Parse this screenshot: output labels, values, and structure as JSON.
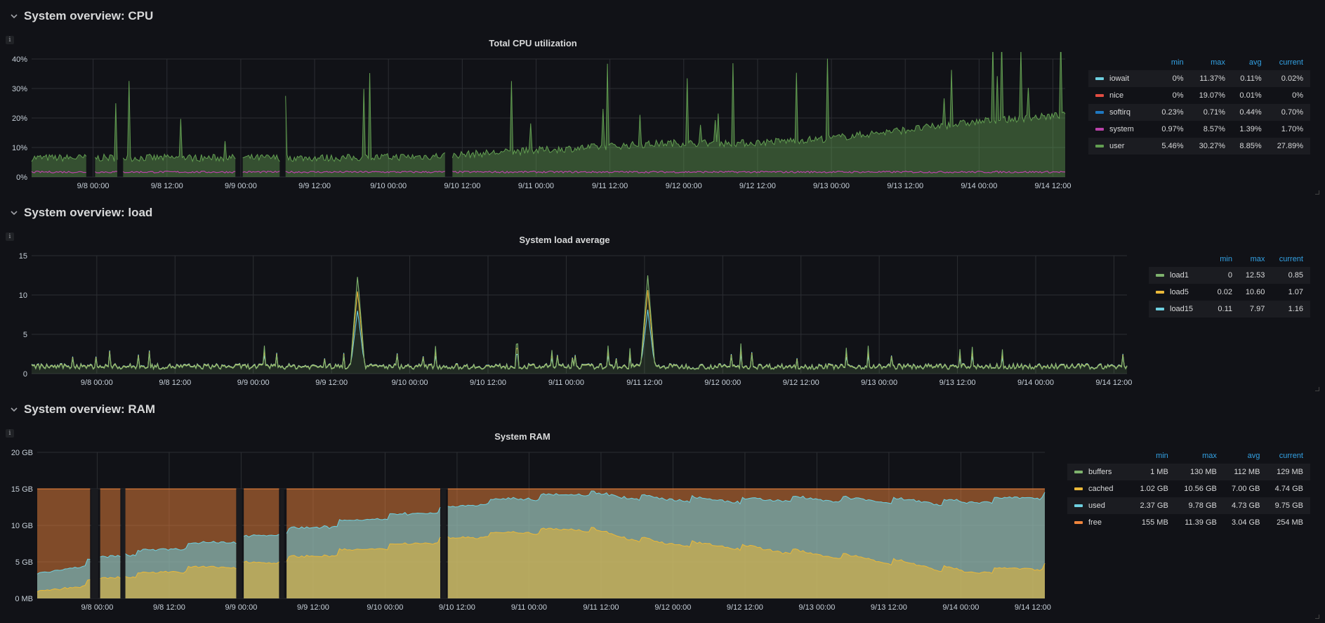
{
  "rows": [
    {
      "title": "System overview: CPU"
    },
    {
      "title": "System overview: load"
    },
    {
      "title": "System overview: RAM"
    }
  ],
  "info_glyph": "i",
  "chart_data": [
    {
      "type": "area",
      "title": "Total CPU utilization",
      "x_ticks": [
        "9/8 00:00",
        "9/8 12:00",
        "9/9 00:00",
        "9/9 12:00",
        "9/10 00:00",
        "9/10 12:00",
        "9/11 00:00",
        "9/11 12:00",
        "9/12 00:00",
        "9/12 12:00",
        "9/13 00:00",
        "9/13 12:00",
        "9/14 00:00",
        "9/14 12:00"
      ],
      "y_ticks": [
        "0%",
        "10%",
        "20%",
        "30%",
        "40%"
      ],
      "ylim": [
        0,
        40
      ],
      "grid": true,
      "legend_position": "right",
      "legend_columns": [
        "min",
        "max",
        "avg",
        "current"
      ],
      "gaps": [
        [
          "9/7 23:00",
          "9/8 00:10"
        ],
        [
          "9/8 04:00",
          "9/8 04:40"
        ],
        [
          "9/8 23:15",
          "9/9 00:10"
        ],
        [
          "9/9 06:30",
          "9/9 07:10"
        ],
        [
          "9/10 09:20",
          "9/10 10:10"
        ]
      ],
      "series": [
        {
          "name": "iowait",
          "color": "#6ed0e0",
          "min": "0%",
          "max": "11.37%",
          "avg": "0.11%",
          "current": "0.02%",
          "typical": 0.1
        },
        {
          "name": "nice",
          "color": "#e24d42",
          "min": "0%",
          "max": "19.07%",
          "avg": "0.01%",
          "current": "0%",
          "typical": 0
        },
        {
          "name": "softirq",
          "color": "#1f78c1",
          "min": "0.23%",
          "max": "0.71%",
          "avg": "0.44%",
          "current": "0.70%",
          "typical": 0.44
        },
        {
          "name": "system",
          "color": "#ba43a9",
          "min": "0.97%",
          "max": "8.57%",
          "avg": "1.39%",
          "current": "1.70%",
          "typical": 1.39
        },
        {
          "name": "user",
          "color": "#629e51",
          "min": "5.46%",
          "max": "30.27%",
          "avg": "8.85%",
          "current": "27.89%",
          "typical": [
            6.5,
            6.5,
            6.5,
            6.5,
            6.5,
            7,
            8.5,
            10,
            11.5,
            11.5,
            13,
            16,
            19,
            21
          ]
        }
      ]
    },
    {
      "type": "line",
      "title": "System load average",
      "x_ticks": [
        "9/8 00:00",
        "9/8 12:00",
        "9/9 00:00",
        "9/9 12:00",
        "9/10 00:00",
        "9/10 12:00",
        "9/11 00:00",
        "9/11 12:00",
        "9/12 00:00",
        "9/12 12:00",
        "9/13 00:00",
        "9/13 12:00",
        "9/14 00:00",
        "9/14 12:00"
      ],
      "y_ticks": [
        "0",
        "5",
        "10",
        "15"
      ],
      "ylim": [
        0,
        15
      ],
      "grid": true,
      "legend_position": "right",
      "legend_columns": [
        "min",
        "max",
        "current"
      ],
      "spikes": [
        [
          "9/9 16:00",
          12.5
        ],
        [
          "9/11 12:30",
          12.5
        ]
      ],
      "series": [
        {
          "name": "load1",
          "color": "#7eb26d",
          "min": "0",
          "max": "12.53",
          "current": "0.85"
        },
        {
          "name": "load5",
          "color": "#eab839",
          "min": "0.02",
          "max": "10.60",
          "current": "1.07"
        },
        {
          "name": "load15",
          "color": "#6ed0e0",
          "min": "0.11",
          "max": "7.97",
          "current": "1.16"
        }
      ]
    },
    {
      "type": "area",
      "title": "System RAM",
      "x_ticks": [
        "9/8 00:00",
        "9/8 12:00",
        "9/9 00:00",
        "9/9 12:00",
        "9/10 00:00",
        "9/10 12:00",
        "9/11 00:00",
        "9/11 12:00",
        "9/12 00:00",
        "9/12 12:00",
        "9/13 00:00",
        "9/13 12:00",
        "9/14 00:00",
        "9/14 12:00"
      ],
      "y_ticks": [
        "0 MB",
        "5 GB",
        "10 GB",
        "15 GB",
        "20 GB"
      ],
      "ylim": [
        0,
        20
      ],
      "grid": true,
      "legend_position": "right",
      "legend_columns": [
        "min",
        "max",
        "avg",
        "current"
      ],
      "total_gb": 15,
      "cached_gb": [
        1.0,
        3.3,
        4.4,
        5.4,
        6.8,
        8.1,
        9.3,
        10.0,
        8.0,
        7.5,
        6.5,
        5.5,
        4.0,
        4.7
      ],
      "used_gb": [
        2.4,
        3.0,
        3.2,
        3.8,
        4.0,
        4.1,
        4.6,
        4.8,
        6.0,
        6.3,
        7.5,
        8.3,
        9.5,
        9.8
      ],
      "gaps": [
        [
          "9/7 23:00",
          "9/8 00:10"
        ],
        [
          "9/8 04:00",
          "9/8 04:40"
        ],
        [
          "9/8 23:15",
          "9/9 00:10"
        ],
        [
          "9/9 06:30",
          "9/9 07:10"
        ],
        [
          "9/10 09:20",
          "9/10 10:10"
        ]
      ],
      "series": [
        {
          "name": "buffers",
          "color": "#7eb26d",
          "min": "1 MB",
          "max": "130 MB",
          "avg": "112 MB",
          "current": "129 MB"
        },
        {
          "name": "cached",
          "color": "#eab839",
          "min": "1.02 GB",
          "max": "10.56 GB",
          "avg": "7.00 GB",
          "current": "4.74 GB"
        },
        {
          "name": "used",
          "color": "#6ed0e0",
          "min": "2.37 GB",
          "max": "9.78 GB",
          "avg": "4.73 GB",
          "current": "9.75 GB"
        },
        {
          "name": "free",
          "color": "#ef843c",
          "min": "155 MB",
          "max": "11.39 GB",
          "avg": "3.04 GB",
          "current": "254 MB"
        }
      ]
    }
  ]
}
